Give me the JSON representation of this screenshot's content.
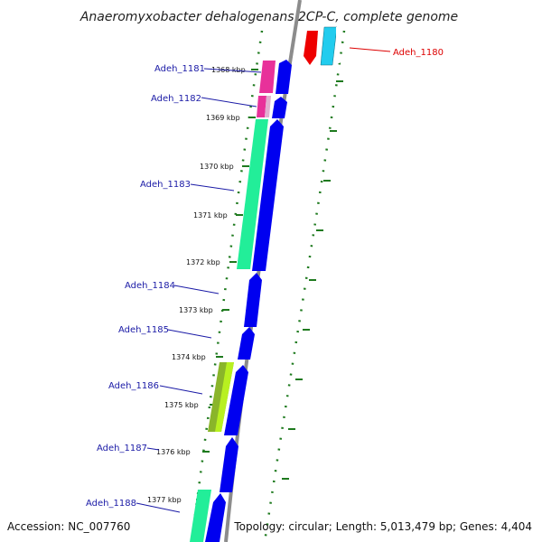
{
  "title": "Anaeromyxobacter dehalogenans 2CP-C, complete genome",
  "footer": {
    "accession": "Accession: NC_007760",
    "topology": "Topology: circular; Length: 5,013,479 bp; Genes: 4,404"
  },
  "colors": {
    "backbone": "#8c8c8c",
    "cds_forward": "#0000f0",
    "tick": "#1e7a1e",
    "label_blue": "#1a1aa6",
    "label_red": "#dd0000"
  },
  "kbp_ticks": [
    "1368 kbp",
    "1369 kbp",
    "1370 kbp",
    "1371 kbp",
    "1372 kbp",
    "1373 kbp",
    "1374 kbp",
    "1375 kbp",
    "1376 kbp",
    "1377 kbp"
  ],
  "genes": [
    {
      "name": "Adeh_1180",
      "color": "red"
    },
    {
      "name": "Adeh_1181",
      "color": "blue"
    },
    {
      "name": "Adeh_1182",
      "color": "blue"
    },
    {
      "name": "Adeh_1183",
      "color": "blue"
    },
    {
      "name": "Adeh_1184",
      "color": "blue"
    },
    {
      "name": "Adeh_1185",
      "color": "blue"
    },
    {
      "name": "Adeh_1186",
      "color": "blue"
    },
    {
      "name": "Adeh_1187",
      "color": "blue"
    },
    {
      "name": "Adeh_1188",
      "color": "blue"
    }
  ]
}
